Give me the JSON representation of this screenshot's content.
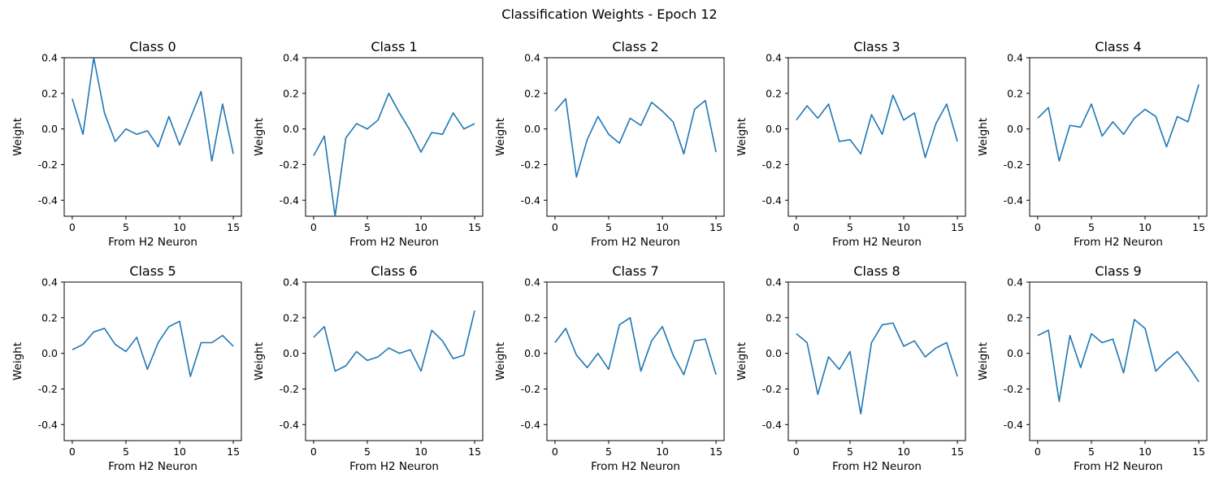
{
  "figure": {
    "title": "Classification Weights - Epoch 12"
  },
  "chart_data": [
    {
      "type": "line",
      "title": "Class 0",
      "xlabel": "From H2 Neuron",
      "ylabel": "Weight",
      "xlim": [
        -0.75,
        15.75
      ],
      "ylim": [
        -0.49,
        0.4
      ],
      "xticks": [
        0,
        5,
        10,
        15
      ],
      "yticks": [
        -0.4,
        -0.2,
        0.0,
        0.2,
        0.4
      ],
      "x": [
        0,
        1,
        2,
        3,
        4,
        5,
        6,
        7,
        8,
        9,
        10,
        11,
        12,
        13,
        14,
        15
      ],
      "values": [
        0.17,
        -0.03,
        0.4,
        0.09,
        -0.07,
        0.0,
        -0.03,
        -0.01,
        -0.1,
        0.07,
        -0.09,
        0.06,
        0.21,
        -0.18,
        0.14,
        -0.14
      ]
    },
    {
      "type": "line",
      "title": "Class 1",
      "xlabel": "From H2 Neuron",
      "ylabel": "Weight",
      "xlim": [
        -0.75,
        15.75
      ],
      "ylim": [
        -0.49,
        0.4
      ],
      "xticks": [
        0,
        5,
        10,
        15
      ],
      "yticks": [
        -0.4,
        -0.2,
        0.0,
        0.2,
        0.4
      ],
      "x": [
        0,
        1,
        2,
        3,
        4,
        5,
        6,
        7,
        8,
        9,
        10,
        11,
        12,
        13,
        14,
        15
      ],
      "values": [
        -0.15,
        -0.04,
        -0.49,
        -0.05,
        0.03,
        0.0,
        0.05,
        0.2,
        0.09,
        -0.01,
        -0.13,
        -0.02,
        -0.03,
        0.09,
        0.0,
        0.03
      ]
    },
    {
      "type": "line",
      "title": "Class 2",
      "xlabel": "From H2 Neuron",
      "ylabel": "Weight",
      "xlim": [
        -0.75,
        15.75
      ],
      "ylim": [
        -0.49,
        0.4
      ],
      "xticks": [
        0,
        5,
        10,
        15
      ],
      "yticks": [
        -0.4,
        -0.2,
        0.0,
        0.2,
        0.4
      ],
      "x": [
        0,
        1,
        2,
        3,
        4,
        5,
        6,
        7,
        8,
        9,
        10,
        11,
        12,
        13,
        14,
        15
      ],
      "values": [
        0.1,
        0.17,
        -0.27,
        -0.06,
        0.07,
        -0.03,
        -0.08,
        0.06,
        0.02,
        0.15,
        0.1,
        0.04,
        -0.14,
        0.11,
        0.16,
        -0.13
      ]
    },
    {
      "type": "line",
      "title": "Class 3",
      "xlabel": "From H2 Neuron",
      "ylabel": "Weight",
      "xlim": [
        -0.75,
        15.75
      ],
      "ylim": [
        -0.49,
        0.4
      ],
      "xticks": [
        0,
        5,
        10,
        15
      ],
      "yticks": [
        -0.4,
        -0.2,
        0.0,
        0.2,
        0.4
      ],
      "x": [
        0,
        1,
        2,
        3,
        4,
        5,
        6,
        7,
        8,
        9,
        10,
        11,
        12,
        13,
        14,
        15
      ],
      "values": [
        0.05,
        0.13,
        0.06,
        0.14,
        -0.07,
        -0.06,
        -0.14,
        0.08,
        -0.03,
        0.19,
        0.05,
        0.09,
        -0.16,
        0.03,
        0.14,
        -0.07
      ]
    },
    {
      "type": "line",
      "title": "Class 4",
      "xlabel": "From H2 Neuron",
      "ylabel": "Weight",
      "xlim": [
        -0.75,
        15.75
      ],
      "ylim": [
        -0.49,
        0.4
      ],
      "xticks": [
        0,
        5,
        10,
        15
      ],
      "yticks": [
        -0.4,
        -0.2,
        0.0,
        0.2,
        0.4
      ],
      "x": [
        0,
        1,
        2,
        3,
        4,
        5,
        6,
        7,
        8,
        9,
        10,
        11,
        12,
        13,
        14,
        15
      ],
      "values": [
        0.06,
        0.12,
        -0.18,
        0.02,
        0.01,
        0.14,
        -0.04,
        0.04,
        -0.03,
        0.06,
        0.11,
        0.07,
        -0.1,
        0.07,
        0.04,
        0.25
      ]
    },
    {
      "type": "line",
      "title": "Class 5",
      "xlabel": "From H2 Neuron",
      "ylabel": "Weight",
      "xlim": [
        -0.75,
        15.75
      ],
      "ylim": [
        -0.49,
        0.4
      ],
      "xticks": [
        0,
        5,
        10,
        15
      ],
      "yticks": [
        -0.4,
        -0.2,
        0.0,
        0.2,
        0.4
      ],
      "x": [
        0,
        1,
        2,
        3,
        4,
        5,
        6,
        7,
        8,
        9,
        10,
        11,
        12,
        13,
        14,
        15
      ],
      "values": [
        0.02,
        0.05,
        0.12,
        0.14,
        0.05,
        0.01,
        0.09,
        -0.09,
        0.06,
        0.15,
        0.18,
        -0.13,
        0.06,
        0.06,
        0.1,
        0.04
      ]
    },
    {
      "type": "line",
      "title": "Class 6",
      "xlabel": "From H2 Neuron",
      "ylabel": "Weight",
      "xlim": [
        -0.75,
        15.75
      ],
      "ylim": [
        -0.49,
        0.4
      ],
      "xticks": [
        0,
        5,
        10,
        15
      ],
      "yticks": [
        -0.4,
        -0.2,
        0.0,
        0.2,
        0.4
      ],
      "x": [
        0,
        1,
        2,
        3,
        4,
        5,
        6,
        7,
        8,
        9,
        10,
        11,
        12,
        13,
        14,
        15
      ],
      "values": [
        0.09,
        0.15,
        -0.1,
        -0.07,
        0.01,
        -0.04,
        -0.02,
        0.03,
        0.0,
        0.02,
        -0.1,
        0.13,
        0.07,
        -0.03,
        -0.01,
        0.24
      ]
    },
    {
      "type": "line",
      "title": "Class 7",
      "xlabel": "From H2 Neuron",
      "ylabel": "Weight",
      "xlim": [
        -0.75,
        15.75
      ],
      "ylim": [
        -0.49,
        0.4
      ],
      "xticks": [
        0,
        5,
        10,
        15
      ],
      "yticks": [
        -0.4,
        -0.2,
        0.0,
        0.2,
        0.4
      ],
      "x": [
        0,
        1,
        2,
        3,
        4,
        5,
        6,
        7,
        8,
        9,
        10,
        11,
        12,
        13,
        14,
        15
      ],
      "values": [
        0.06,
        0.14,
        -0.01,
        -0.08,
        0.0,
        -0.09,
        0.16,
        0.2,
        -0.1,
        0.07,
        0.15,
        -0.01,
        -0.12,
        0.07,
        0.08,
        -0.12
      ]
    },
    {
      "type": "line",
      "title": "Class 8",
      "xlabel": "From H2 Neuron",
      "ylabel": "Weight",
      "xlim": [
        -0.75,
        15.75
      ],
      "ylim": [
        -0.49,
        0.4
      ],
      "xticks": [
        0,
        5,
        10,
        15
      ],
      "yticks": [
        -0.4,
        -0.2,
        0.0,
        0.2,
        0.4
      ],
      "x": [
        0,
        1,
        2,
        3,
        4,
        5,
        6,
        7,
        8,
        9,
        10,
        11,
        12,
        13,
        14,
        15
      ],
      "values": [
        0.11,
        0.06,
        -0.23,
        -0.02,
        -0.09,
        0.01,
        -0.34,
        0.06,
        0.16,
        0.17,
        0.04,
        0.07,
        -0.02,
        0.03,
        0.06,
        -0.13
      ]
    },
    {
      "type": "line",
      "title": "Class 9",
      "xlabel": "From H2 Neuron",
      "ylabel": "Weight",
      "xlim": [
        -0.75,
        15.75
      ],
      "ylim": [
        -0.49,
        0.4
      ],
      "xticks": [
        0,
        5,
        10,
        15
      ],
      "yticks": [
        -0.4,
        -0.2,
        0.0,
        0.2,
        0.4
      ],
      "x": [
        0,
        1,
        2,
        3,
        4,
        5,
        6,
        7,
        8,
        9,
        10,
        11,
        12,
        13,
        14,
        15
      ],
      "values": [
        0.1,
        0.13,
        -0.27,
        0.1,
        -0.08,
        0.11,
        0.06,
        0.08,
        -0.11,
        0.19,
        0.14,
        -0.1,
        -0.04,
        0.01,
        -0.07,
        -0.16
      ]
    }
  ],
  "style": {
    "line_color": "#1f77b4",
    "axis_color": "#000000",
    "background": "#ffffff",
    "grid": false
  }
}
